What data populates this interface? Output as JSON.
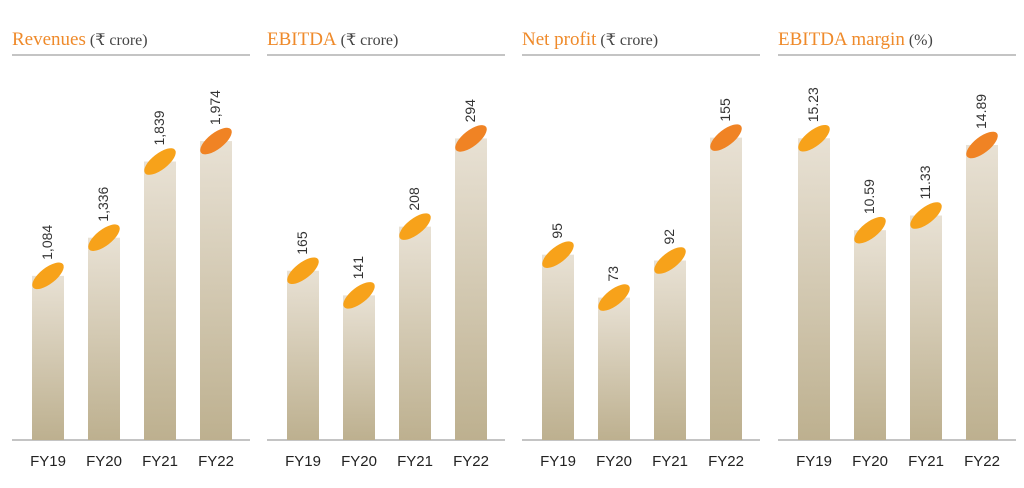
{
  "colors": {
    "accent": "#ef8a2a",
    "cap_highlight": "#f08324",
    "cap_default": "#f7a21a",
    "bar_top": "#e8e1d4",
    "bar_bottom": "#bdb08f",
    "rule": "#8a8a8a"
  },
  "chart_data": [
    {
      "type": "bar",
      "title": "Revenues",
      "unit": "(₹ crore)",
      "categories": [
        "FY19",
        "FY20",
        "FY21",
        "FY22"
      ],
      "values": [
        1084,
        1336,
        1839,
        1974
      ],
      "labels": [
        "1,084",
        "1,336",
        "1,839",
        "1,974"
      ],
      "highlight_index": 3,
      "ylim": [
        0,
        2100
      ]
    },
    {
      "type": "bar",
      "title": "EBITDA",
      "unit": "(₹ crore)",
      "categories": [
        "FY19",
        "FY20",
        "FY21",
        "FY22"
      ],
      "values": [
        165,
        141,
        208,
        294
      ],
      "labels": [
        "165",
        "141",
        "208",
        "294"
      ],
      "highlight_index": 3,
      "ylim": [
        0,
        310
      ]
    },
    {
      "type": "bar",
      "title": "Net profit",
      "unit": "(₹ crore)",
      "categories": [
        "FY19",
        "FY20",
        "FY21",
        "FY22"
      ],
      "values": [
        95,
        73,
        92,
        155
      ],
      "labels": [
        "95",
        "73",
        "92",
        "155"
      ],
      "highlight_index": 3,
      "ylim": [
        0,
        163
      ]
    },
    {
      "type": "bar",
      "title": "EBITDA margin",
      "unit": "(%)",
      "categories": [
        "FY19",
        "FY20",
        "FY21",
        "FY22"
      ],
      "values": [
        15.23,
        10.59,
        11.33,
        14.89
      ],
      "labels": [
        "15.23",
        "10.59",
        "11.33",
        "14.89"
      ],
      "highlight_index": 3,
      "ylim": [
        0,
        16.05
      ]
    }
  ]
}
